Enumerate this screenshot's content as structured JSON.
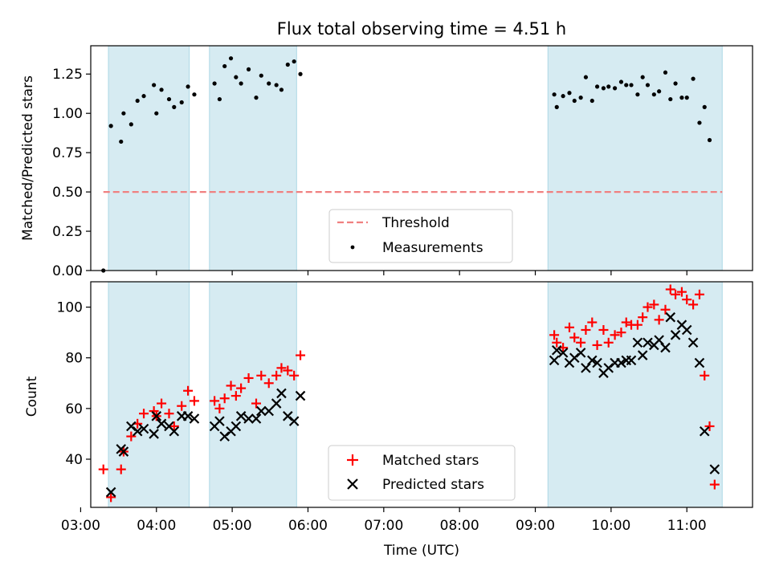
{
  "chart_data": [
    {
      "type": "scatter",
      "title": "Flux total observing time = 4.51 h",
      "xlabel": "",
      "ylabel": "Matched/Predicted stars",
      "xlim": [
        "03:08",
        "11:52"
      ],
      "ylim": [
        0,
        1.43
      ],
      "yticks": [
        0.0,
        0.25,
        0.5,
        0.75,
        1.0,
        1.25
      ],
      "ytick_labels": [
        "0.00",
        "0.25",
        "0.50",
        "0.75",
        "1.00",
        "1.25"
      ],
      "xticks": [
        "03:00",
        "04:00",
        "05:00",
        "06:00",
        "07:00",
        "08:00",
        "09:00",
        "10:00",
        "11:00"
      ],
      "show_xtick_labels": false,
      "shaded_intervals": [
        [
          "03:22",
          "04:26"
        ],
        [
          "04:42",
          "05:51"
        ],
        [
          "09:10",
          "11:28"
        ]
      ],
      "threshold": {
        "name": "Threshold",
        "value": 0.5,
        "x_range": [
          "03:18",
          "11:28"
        ],
        "color": "#f08080",
        "style": "dashed"
      },
      "series": [
        {
          "name": "Measurements",
          "marker": "dot",
          "color": "#000000",
          "points": [
            [
              "03:18",
              0.0
            ],
            [
              "03:24",
              0.92
            ],
            [
              "03:32",
              0.82
            ],
            [
              "03:34",
              1.0
            ],
            [
              "03:40",
              0.93
            ],
            [
              "03:45",
              1.08
            ],
            [
              "03:50",
              1.11
            ],
            [
              "03:58",
              1.18
            ],
            [
              "04:00",
              1.0
            ],
            [
              "04:04",
              1.15
            ],
            [
              "04:10",
              1.09
            ],
            [
              "04:14",
              1.04
            ],
            [
              "04:20",
              1.07
            ],
            [
              "04:25",
              1.17
            ],
            [
              "04:30",
              1.12
            ],
            [
              "04:46",
              1.19
            ],
            [
              "04:50",
              1.09
            ],
            [
              "04:54",
              1.3
            ],
            [
              "04:59",
              1.35
            ],
            [
              "05:03",
              1.23
            ],
            [
              "05:07",
              1.19
            ],
            [
              "05:13",
              1.28
            ],
            [
              "05:19",
              1.1
            ],
            [
              "05:23",
              1.24
            ],
            [
              "05:29",
              1.19
            ],
            [
              "05:35",
              1.18
            ],
            [
              "05:39",
              1.15
            ],
            [
              "05:44",
              1.31
            ],
            [
              "05:49",
              1.33
            ],
            [
              "05:54",
              1.25
            ],
            [
              "09:15",
              1.12
            ],
            [
              "09:17",
              1.04
            ],
            [
              "09:22",
              1.11
            ],
            [
              "09:27",
              1.13
            ],
            [
              "09:31",
              1.08
            ],
            [
              "09:36",
              1.1
            ],
            [
              "09:40",
              1.23
            ],
            [
              "09:45",
              1.08
            ],
            [
              "09:49",
              1.17
            ],
            [
              "09:54",
              1.16
            ],
            [
              "09:58",
              1.17
            ],
            [
              "10:03",
              1.16
            ],
            [
              "10:08",
              1.2
            ],
            [
              "10:12",
              1.18
            ],
            [
              "10:16",
              1.18
            ],
            [
              "10:21",
              1.12
            ],
            [
              "10:25",
              1.23
            ],
            [
              "10:29",
              1.18
            ],
            [
              "10:34",
              1.12
            ],
            [
              "10:38",
              1.14
            ],
            [
              "10:43",
              1.26
            ],
            [
              "10:47",
              1.09
            ],
            [
              "10:51",
              1.19
            ],
            [
              "10:56",
              1.1
            ],
            [
              "11:00",
              1.1
            ],
            [
              "11:05",
              1.22
            ],
            [
              "11:10",
              0.94
            ],
            [
              "11:14",
              1.04
            ],
            [
              "11:18",
              0.83
            ]
          ]
        }
      ],
      "legend": {
        "placement": "bottom-center",
        "entries": [
          "Threshold",
          "Measurements"
        ]
      }
    },
    {
      "type": "scatter",
      "title": "",
      "xlabel": "Time (UTC)",
      "ylabel": "Count",
      "xlim": [
        "03:08",
        "11:52"
      ],
      "ylim": [
        21,
        110
      ],
      "yticks": [
        40,
        60,
        80,
        100
      ],
      "ytick_labels": [
        "40",
        "60",
        "80",
        "100"
      ],
      "xticks": [
        "03:00",
        "04:00",
        "05:00",
        "06:00",
        "07:00",
        "08:00",
        "09:00",
        "10:00",
        "11:00"
      ],
      "xtick_labels": [
        "03:00",
        "04:00",
        "05:00",
        "06:00",
        "07:00",
        "08:00",
        "09:00",
        "10:00",
        "11:00"
      ],
      "show_xtick_labels": true,
      "shaded_intervals": [
        [
          "03:22",
          "04:26"
        ],
        [
          "04:42",
          "05:51"
        ],
        [
          "09:10",
          "11:28"
        ]
      ],
      "series": [
        {
          "name": "Matched stars",
          "marker": "plus",
          "color": "#ff0000",
          "points": [
            [
              "03:18",
              36
            ],
            [
              "03:24",
              25
            ],
            [
              "03:32",
              36
            ],
            [
              "03:34",
              43
            ],
            [
              "03:40",
              49
            ],
            [
              "03:45",
              54
            ],
            [
              "03:50",
              58
            ],
            [
              "03:58",
              59
            ],
            [
              "04:00",
              57
            ],
            [
              "04:04",
              62
            ],
            [
              "04:10",
              58
            ],
            [
              "04:14",
              53
            ],
            [
              "04:20",
              61
            ],
            [
              "04:25",
              67
            ],
            [
              "04:30",
              63
            ],
            [
              "04:46",
              63
            ],
            [
              "04:50",
              60
            ],
            [
              "04:54",
              64
            ],
            [
              "04:59",
              69
            ],
            [
              "05:03",
              65
            ],
            [
              "05:07",
              68
            ],
            [
              "05:13",
              72
            ],
            [
              "05:19",
              62
            ],
            [
              "05:23",
              73
            ],
            [
              "05:29",
              70
            ],
            [
              "05:35",
              73
            ],
            [
              "05:39",
              76
            ],
            [
              "05:44",
              75
            ],
            [
              "05:49",
              73
            ],
            [
              "05:54",
              81
            ],
            [
              "09:15",
              89
            ],
            [
              "09:17",
              86
            ],
            [
              "09:22",
              84
            ],
            [
              "09:27",
              92
            ],
            [
              "09:31",
              88
            ],
            [
              "09:36",
              86
            ],
            [
              "09:40",
              91
            ],
            [
              "09:45",
              94
            ],
            [
              "09:49",
              85
            ],
            [
              "09:54",
              91
            ],
            [
              "09:58",
              86
            ],
            [
              "10:03",
              89
            ],
            [
              "10:08",
              90
            ],
            [
              "10:12",
              94
            ],
            [
              "10:16",
              93
            ],
            [
              "10:21",
              93
            ],
            [
              "10:25",
              96
            ],
            [
              "10:29",
              100
            ],
            [
              "10:34",
              101
            ],
            [
              "10:38",
              95
            ],
            [
              "10:43",
              99
            ],
            [
              "10:47",
              107
            ],
            [
              "10:51",
              105
            ],
            [
              "10:56",
              106
            ],
            [
              "11:00",
              103
            ],
            [
              "11:05",
              101
            ],
            [
              "11:10",
              105
            ],
            [
              "11:14",
              73
            ],
            [
              "11:18",
              53
            ],
            [
              "11:22",
              30
            ]
          ]
        },
        {
          "name": "Predicted stars",
          "marker": "x",
          "color": "#000000",
          "points": [
            [
              "03:24",
              27
            ],
            [
              "03:32",
              44
            ],
            [
              "03:34",
              43
            ],
            [
              "03:40",
              53
            ],
            [
              "03:45",
              51
            ],
            [
              "03:50",
              52
            ],
            [
              "03:58",
              50
            ],
            [
              "04:00",
              57
            ],
            [
              "04:04",
              54
            ],
            [
              "04:10",
              53
            ],
            [
              "04:14",
              51
            ],
            [
              "04:20",
              57
            ],
            [
              "04:25",
              57
            ],
            [
              "04:30",
              56
            ],
            [
              "04:46",
              53
            ],
            [
              "04:50",
              55
            ],
            [
              "04:54",
              49
            ],
            [
              "04:59",
              51
            ],
            [
              "05:03",
              53
            ],
            [
              "05:07",
              57
            ],
            [
              "05:13",
              56
            ],
            [
              "05:19",
              56
            ],
            [
              "05:23",
              59
            ],
            [
              "05:29",
              59
            ],
            [
              "05:35",
              62
            ],
            [
              "05:39",
              66
            ],
            [
              "05:44",
              57
            ],
            [
              "05:49",
              55
            ],
            [
              "05:54",
              65
            ],
            [
              "09:15",
              79
            ],
            [
              "09:17",
              83
            ],
            [
              "09:22",
              82
            ],
            [
              "09:27",
              78
            ],
            [
              "09:31",
              80
            ],
            [
              "09:36",
              82
            ],
            [
              "09:40",
              76
            ],
            [
              "09:45",
              79
            ],
            [
              "09:49",
              78
            ],
            [
              "09:54",
              74
            ],
            [
              "09:58",
              76
            ],
            [
              "10:03",
              78
            ],
            [
              "10:08",
              78
            ],
            [
              "10:12",
              79
            ],
            [
              "10:16",
              79
            ],
            [
              "10:21",
              86
            ],
            [
              "10:25",
              81
            ],
            [
              "10:29",
              86
            ],
            [
              "10:34",
              85
            ],
            [
              "10:38",
              87
            ],
            [
              "10:43",
              84
            ],
            [
              "10:47",
              96
            ],
            [
              "10:51",
              89
            ],
            [
              "10:56",
              93
            ],
            [
              "11:00",
              91
            ],
            [
              "11:05",
              86
            ],
            [
              "11:10",
              78
            ],
            [
              "11:14",
              51
            ],
            [
              "11:22",
              36
            ]
          ]
        }
      ],
      "legend": {
        "placement": "bottom-center",
        "entries": [
          "Matched stars",
          "Predicted stars"
        ]
      }
    }
  ],
  "colors": {
    "shading": "#add8e6",
    "threshold": "#f08080",
    "matched": "#ff0000",
    "predicted": "#000000",
    "measurement": "#000000"
  }
}
